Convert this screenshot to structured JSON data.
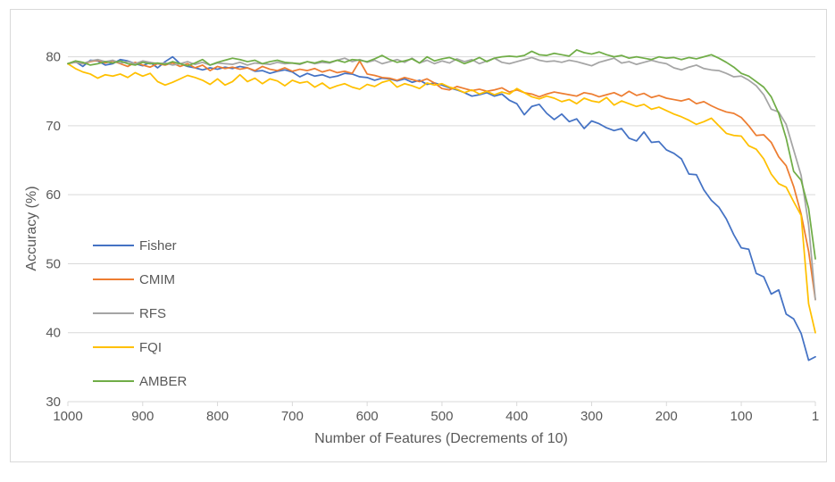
{
  "chart_data": {
    "type": "line",
    "title": "",
    "xlabel": "Number of Features (Decrements of 10)",
    "ylabel": "Accuracy (%)",
    "xlim": [
      1000,
      1
    ],
    "ylim": [
      30,
      85
    ],
    "x_ticks": [
      1000,
      900,
      800,
      700,
      600,
      500,
      400,
      300,
      200,
      100,
      1
    ],
    "x_tick_labels": [
      "1000",
      "900",
      "800",
      "700",
      "600",
      "500",
      "400",
      "300",
      "200",
      "100",
      "1"
    ],
    "y_ticks": [
      30,
      40,
      50,
      60,
      70,
      80
    ],
    "y_tick_labels": [
      "30",
      "40",
      "50",
      "60",
      "70",
      "80"
    ],
    "grid": "horizontal",
    "legend_position": "left",
    "x": [
      1000,
      990,
      980,
      970,
      960,
      950,
      940,
      930,
      920,
      910,
      900,
      890,
      880,
      870,
      860,
      850,
      840,
      830,
      820,
      810,
      800,
      790,
      780,
      770,
      760,
      750,
      740,
      730,
      720,
      710,
      700,
      690,
      680,
      670,
      660,
      650,
      640,
      630,
      620,
      610,
      600,
      590,
      580,
      570,
      560,
      550,
      540,
      530,
      520,
      510,
      500,
      490,
      480,
      470,
      460,
      450,
      440,
      430,
      420,
      410,
      400,
      390,
      380,
      370,
      360,
      350,
      340,
      330,
      320,
      310,
      300,
      290,
      280,
      270,
      260,
      250,
      240,
      230,
      220,
      210,
      200,
      190,
      180,
      170,
      160,
      150,
      140,
      130,
      120,
      110,
      100,
      90,
      80,
      70,
      60,
      50,
      40,
      30,
      20,
      10,
      1
    ],
    "series": [
      {
        "name": "Fisher",
        "color": "#4472c4",
        "values": [
          79.0,
          79.3,
          78.6,
          79.5,
          79.4,
          78.8,
          79.0,
          79.6,
          79.4,
          79.0,
          78.7,
          79.2,
          78.4,
          79.3,
          80.0,
          79.0,
          78.6,
          78.4,
          78.1,
          78.4,
          78.2,
          78.5,
          78.3,
          78.6,
          78.4,
          77.9,
          78.0,
          77.6,
          77.9,
          78.1,
          77.8,
          77.1,
          77.6,
          77.2,
          77.4,
          77.0,
          77.2,
          77.6,
          77.5,
          77.1,
          77.0,
          76.6,
          76.9,
          76.8,
          76.5,
          76.8,
          76.3,
          76.6,
          76.0,
          76.2,
          75.9,
          75.5,
          75.2,
          74.8,
          74.3,
          74.5,
          74.8,
          74.3,
          74.6,
          73.7,
          73.2,
          71.6,
          72.8,
          73.1,
          71.8,
          70.9,
          71.7,
          70.6,
          71.0,
          69.6,
          70.7,
          70.3,
          69.7,
          69.3,
          69.6,
          68.2,
          67.8,
          69.1,
          67.6,
          67.7,
          66.5,
          66.0,
          65.2,
          63.0,
          62.9,
          60.7,
          59.2,
          58.2,
          56.5,
          54.2,
          52.3,
          52.1,
          48.6,
          48.1,
          45.6,
          46.2,
          42.7,
          42.0,
          39.9,
          36.0,
          36.5
        ]
      },
      {
        "name": "CMIM",
        "color": "#ed7d31",
        "values": [
          79.0,
          79.2,
          79.0,
          79.3,
          79.5,
          79.1,
          79.4,
          79.0,
          78.6,
          79.2,
          78.8,
          78.5,
          79.0,
          78.8,
          79.1,
          78.6,
          79.0,
          78.4,
          78.8,
          78.0,
          78.6,
          78.3,
          78.5,
          78.2,
          78.4,
          78.0,
          78.6,
          78.2,
          78.0,
          78.4,
          77.9,
          78.2,
          78.0,
          78.3,
          77.8,
          78.1,
          77.7,
          77.9,
          77.6,
          79.4,
          77.5,
          77.3,
          77.0,
          76.9,
          76.6,
          77.0,
          76.7,
          76.4,
          76.8,
          76.2,
          75.4,
          75.2,
          75.7,
          75.4,
          75.1,
          75.3,
          75.0,
          75.2,
          75.5,
          74.9,
          75.2,
          74.8,
          74.6,
          74.2,
          74.6,
          74.9,
          74.7,
          74.5,
          74.3,
          74.8,
          74.6,
          74.2,
          74.5,
          74.8,
          74.3,
          75.0,
          74.4,
          74.7,
          74.1,
          74.4,
          74.0,
          73.8,
          73.6,
          73.9,
          73.2,
          73.5,
          72.9,
          72.4,
          72.0,
          71.8,
          71.2,
          70.0,
          68.6,
          68.7,
          67.6,
          65.5,
          64.2,
          61.2,
          57.2,
          51.8,
          44.8
        ]
      },
      {
        "name": "RFS",
        "color": "#a5a5a5",
        "values": [
          79.0,
          79.2,
          79.0,
          79.4,
          79.6,
          79.3,
          79.5,
          79.1,
          79.3,
          79.0,
          79.4,
          79.2,
          79.0,
          79.1,
          78.8,
          79.0,
          79.3,
          78.9,
          79.2,
          78.8,
          79.1,
          79.0,
          78.9,
          79.2,
          78.8,
          79.1,
          79.0,
          78.9,
          79.2,
          79.0,
          79.1,
          78.9,
          79.3,
          79.0,
          79.2,
          79.1,
          79.5,
          79.8,
          79.3,
          79.6,
          79.2,
          79.5,
          79.0,
          79.3,
          79.6,
          79.2,
          79.8,
          79.1,
          79.5,
          79.0,
          79.4,
          79.1,
          79.7,
          79.3,
          79.6,
          79.0,
          79.4,
          79.8,
          79.2,
          79.0,
          79.3,
          79.6,
          79.9,
          79.5,
          79.3,
          79.4,
          79.2,
          79.5,
          79.3,
          79.0,
          78.7,
          79.2,
          79.5,
          79.8,
          79.1,
          79.3,
          78.9,
          79.2,
          79.5,
          79.2,
          79.0,
          78.4,
          78.1,
          78.5,
          78.8,
          78.3,
          78.1,
          78.0,
          77.6,
          77.1,
          77.2,
          76.6,
          75.8,
          74.5,
          72.4,
          72.0,
          70.2,
          66.5,
          62.8,
          55.6,
          44.8
        ]
      },
      {
        "name": "FQI",
        "color": "#ffc000",
        "values": [
          79.0,
          78.3,
          77.8,
          77.5,
          76.9,
          77.4,
          77.2,
          77.5,
          77.0,
          77.7,
          77.2,
          77.6,
          76.4,
          75.9,
          76.3,
          76.8,
          77.3,
          77.0,
          76.6,
          76.0,
          76.8,
          75.9,
          76.4,
          77.4,
          76.4,
          76.9,
          76.1,
          76.8,
          76.5,
          75.8,
          76.6,
          76.2,
          76.4,
          75.6,
          76.2,
          75.4,
          75.8,
          76.1,
          75.6,
          75.3,
          76.0,
          75.7,
          76.3,
          76.6,
          75.6,
          76.1,
          75.8,
          75.4,
          76.2,
          75.9,
          76.1,
          75.6,
          75.3,
          74.8,
          75.2,
          74.6,
          75.0,
          74.5,
          74.9,
          74.6,
          75.4,
          74.8,
          74.2,
          73.9,
          74.3,
          74.0,
          73.5,
          73.8,
          73.2,
          74.0,
          73.6,
          73.4,
          74.1,
          73.0,
          73.6,
          73.2,
          72.8,
          73.1,
          72.4,
          72.7,
          72.2,
          71.7,
          71.3,
          70.8,
          70.2,
          70.6,
          71.1,
          70.0,
          68.9,
          68.6,
          68.5,
          67.1,
          66.6,
          65.2,
          63.0,
          61.6,
          61.1,
          59.0,
          57.0,
          44.2,
          40.0
        ]
      },
      {
        "name": "AMBER",
        "color": "#70ad47",
        "values": [
          79.0,
          79.4,
          79.2,
          78.8,
          79.0,
          79.3,
          79.1,
          79.4,
          79.0,
          78.8,
          79.2,
          79.0,
          79.1,
          78.9,
          79.3,
          79.0,
          78.7,
          79.1,
          79.6,
          78.8,
          79.2,
          79.5,
          79.8,
          79.6,
          79.3,
          79.5,
          79.0,
          79.3,
          79.5,
          79.2,
          79.1,
          79.0,
          79.3,
          79.1,
          79.4,
          79.2,
          79.5,
          79.2,
          79.6,
          79.5,
          79.3,
          79.7,
          80.2,
          79.6,
          79.2,
          79.4,
          79.7,
          79.1,
          80.0,
          79.4,
          79.7,
          79.9,
          79.5,
          79.0,
          79.4,
          79.9,
          79.3,
          79.8,
          80.0,
          80.1,
          80.0,
          80.2,
          80.8,
          80.3,
          80.2,
          80.5,
          80.3,
          80.1,
          81.0,
          80.6,
          80.4,
          80.7,
          80.3,
          80.0,
          80.2,
          79.8,
          80.0,
          79.8,
          79.6,
          80.0,
          79.8,
          79.9,
          79.6,
          79.9,
          79.7,
          80.0,
          80.3,
          79.8,
          79.2,
          78.5,
          77.6,
          77.2,
          76.4,
          75.6,
          74.2,
          71.8,
          68.2,
          63.4,
          62.1,
          58.0,
          50.7
        ]
      }
    ]
  }
}
